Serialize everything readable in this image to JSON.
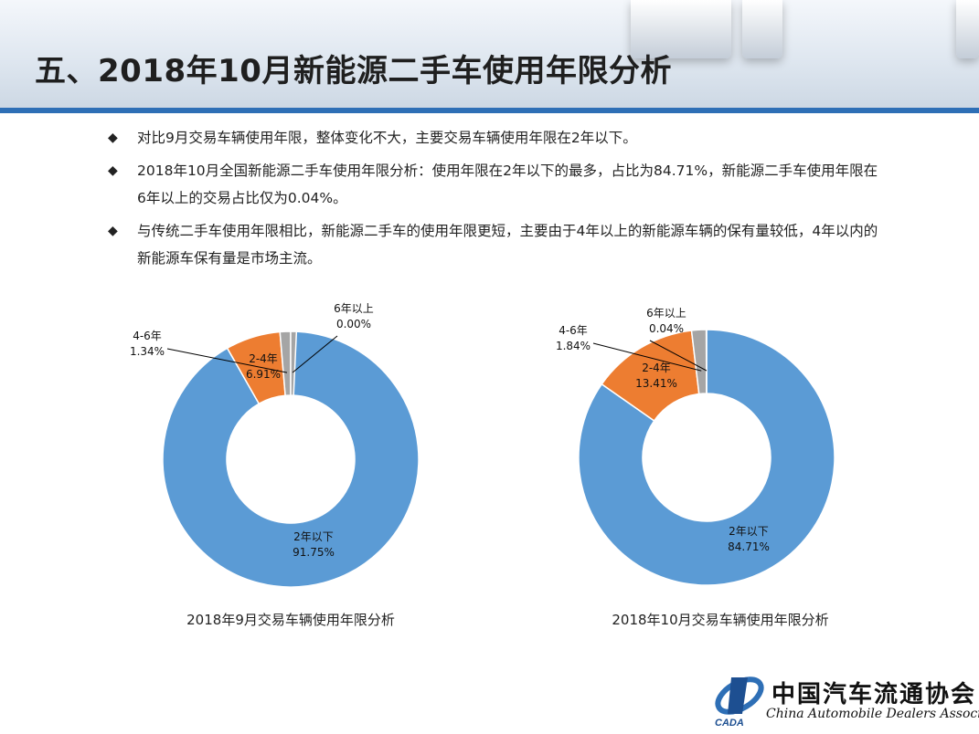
{
  "title": "五、2018年10月新能源二手车使用年限分析",
  "bullets": [
    "对比9月交易车辆使用年限，整体变化不大，主要交易车辆使用年限在2年以下。",
    "2018年10月全国新能源二手车使用年限分析：使用年限在2年以下的最多，占比为84.71%，新能源二手车使用年限在6年以上的交易占比仅为0.04%。",
    "与传统二手车使用年限相比，新能源二手车的使用年限更短，主要由于4年以上的新能源车辆的保有量较低，4年以内的新能源车保有量是市场主流。"
  ],
  "colors": {
    "accent_bar": "#2e6fb6",
    "under2": "#5b9bd5",
    "2to4": "#ed7d31",
    "4to6": "#a5a5a5",
    "over6": "#ffc000"
  },
  "chart_data": [
    {
      "type": "pie",
      "title": "2018年9月交易车辆使用年限分析",
      "donut": true,
      "slices": [
        {
          "label": "2年以下",
          "value": 91.75,
          "text": "91.75%"
        },
        {
          "label": "2-4年",
          "value": 6.91,
          "text": "6.91%"
        },
        {
          "label": "4-6年",
          "value": 1.34,
          "text": "1.34%"
        },
        {
          "label": "6年以上",
          "value": 0.0,
          "text": "0.00%"
        }
      ]
    },
    {
      "type": "pie",
      "title": "2018年10月交易车辆使用年限分析",
      "donut": true,
      "slices": [
        {
          "label": "2年以下",
          "value": 84.71,
          "text": "84.71%"
        },
        {
          "label": "2-4年",
          "value": 13.41,
          "text": "13.41%"
        },
        {
          "label": "4-6年",
          "value": 1.84,
          "text": "1.84%"
        },
        {
          "label": "6年以上",
          "value": 0.04,
          "text": "0.04%"
        }
      ]
    }
  ],
  "logo": {
    "name_cn": "中国汽车流通协会",
    "name_en": "China Automobile Dealers Association",
    "abbr": "CADA"
  }
}
